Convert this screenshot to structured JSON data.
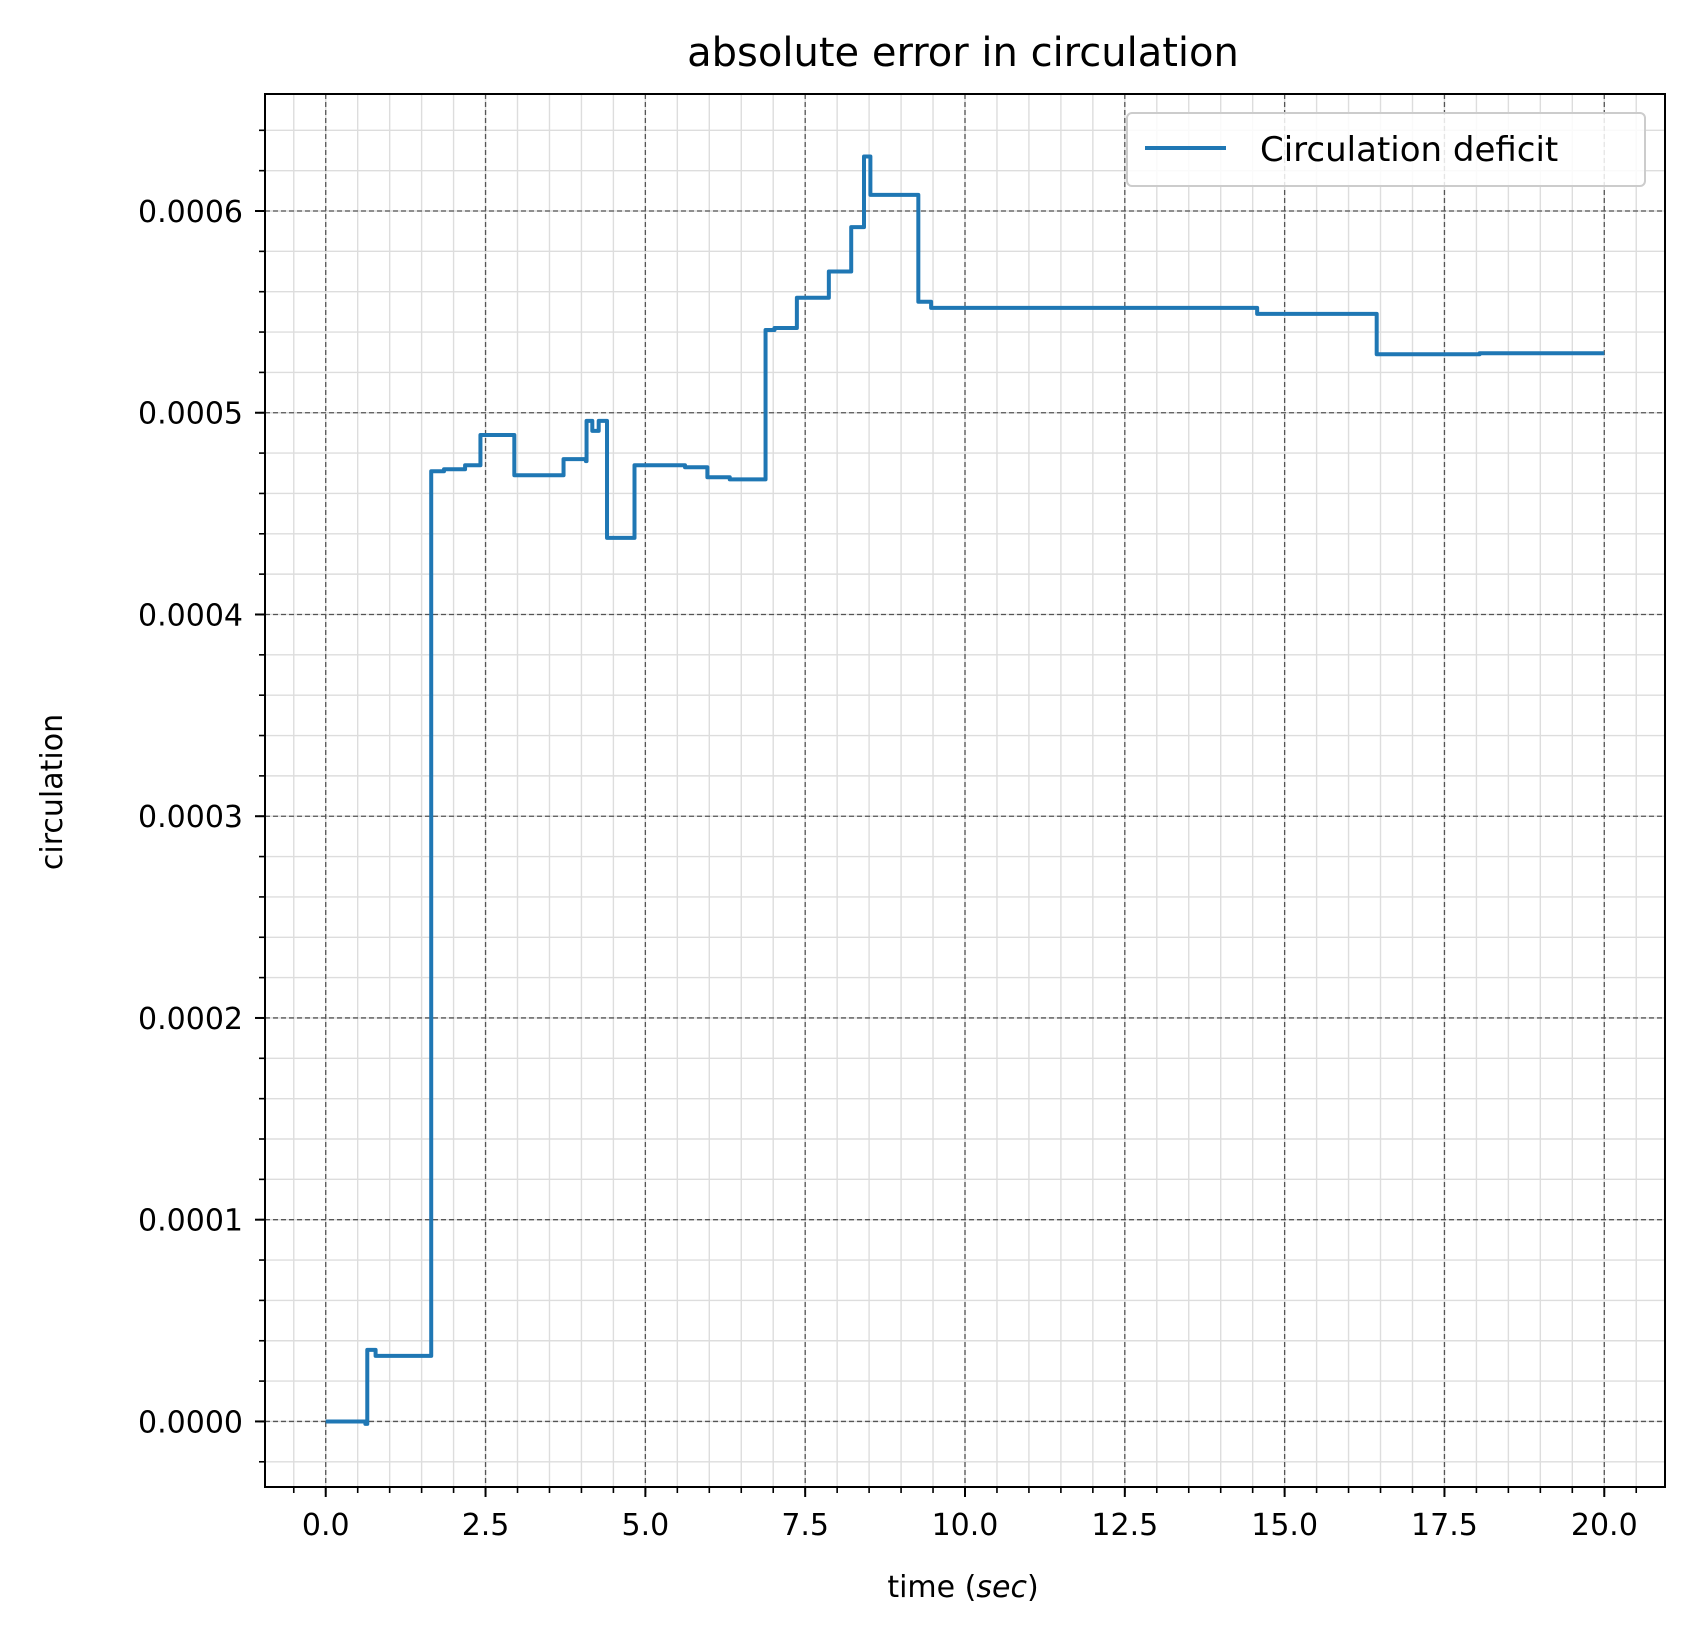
{
  "chart_data": {
    "type": "line",
    "title": "absolute error in circulation",
    "xlabel_main": "time (",
    "xlabel_italic": "sec",
    "xlabel_close": ")",
    "ylabel": "circulation",
    "xlim": [
      -0.95,
      20.95
    ],
    "ylim": [
      -3.25e-05,
      0.000658
    ],
    "xticks": [
      "0.0",
      "2.5",
      "5.0",
      "7.5",
      "10.0",
      "12.5",
      "15.0",
      "17.5",
      "20.0"
    ],
    "yticks": [
      "0.0000",
      "0.0001",
      "0.0002",
      "0.0003",
      "0.0004",
      "0.0005",
      "0.0006"
    ],
    "grid": true,
    "legend_position": "top-right",
    "series": [
      {
        "name": "Circulation deficit",
        "color": "#1f77b4",
        "step": true,
        "points": [
          [
            0.0,
            0.0
          ],
          [
            0.6,
            0.0
          ],
          [
            0.62,
            -1.2e-06
          ],
          [
            0.65,
            3.55e-05
          ],
          [
            0.75,
            3.55e-05
          ],
          [
            0.78,
            3.25e-05
          ],
          [
            1.63,
            3.25e-05
          ],
          [
            1.65,
            3.35e-05
          ],
          [
            1.65,
            0.000471
          ],
          [
            1.8,
            0.000471
          ],
          [
            1.85,
            0.000472
          ],
          [
            2.15,
            0.000472
          ],
          [
            2.18,
            0.000474
          ],
          [
            2.4,
            0.000474
          ],
          [
            2.42,
            0.000489
          ],
          [
            2.92,
            0.000489
          ],
          [
            2.95,
            0.000469
          ],
          [
            3.7,
            0.000469
          ],
          [
            3.72,
            0.000477
          ],
          [
            4.05,
            0.000477
          ],
          [
            4.07,
            0.000476
          ],
          [
            4.08,
            0.000496
          ],
          [
            4.15,
            0.000496
          ],
          [
            4.17,
            0.000491
          ],
          [
            4.25,
            0.000491
          ],
          [
            4.27,
            0.000496
          ],
          [
            4.38,
            0.000496
          ],
          [
            4.4,
            0.000438
          ],
          [
            4.8,
            0.000438
          ],
          [
            4.83,
            0.000474
          ],
          [
            5.6,
            0.000474
          ],
          [
            5.62,
            0.000473
          ],
          [
            5.95,
            0.000473
          ],
          [
            5.97,
            0.000468
          ],
          [
            6.3,
            0.000468
          ],
          [
            6.32,
            0.000467
          ],
          [
            6.85,
            0.000467
          ],
          [
            6.88,
            0.000541
          ],
          [
            7.0,
            0.000541
          ],
          [
            7.02,
            0.000542
          ],
          [
            7.35,
            0.000542
          ],
          [
            7.37,
            0.000557
          ],
          [
            7.85,
            0.000557
          ],
          [
            7.87,
            0.00057
          ],
          [
            8.2,
            0.00057
          ],
          [
            8.22,
            0.000592
          ],
          [
            8.4,
            0.000592
          ],
          [
            8.42,
            0.000627
          ],
          [
            8.5,
            0.000627
          ],
          [
            8.52,
            0.000608
          ],
          [
            9.25,
            0.000608
          ],
          [
            9.27,
            0.000555
          ],
          [
            9.45,
            0.000555
          ],
          [
            9.47,
            0.000552
          ],
          [
            14.55,
            0.000552
          ],
          [
            14.57,
            0.000549
          ],
          [
            16.42,
            0.000549
          ],
          [
            16.44,
            0.000529
          ],
          [
            18.0,
            0.000529
          ],
          [
            18.05,
            0.0005295
          ],
          [
            20.0,
            0.0005295
          ]
        ]
      }
    ]
  }
}
